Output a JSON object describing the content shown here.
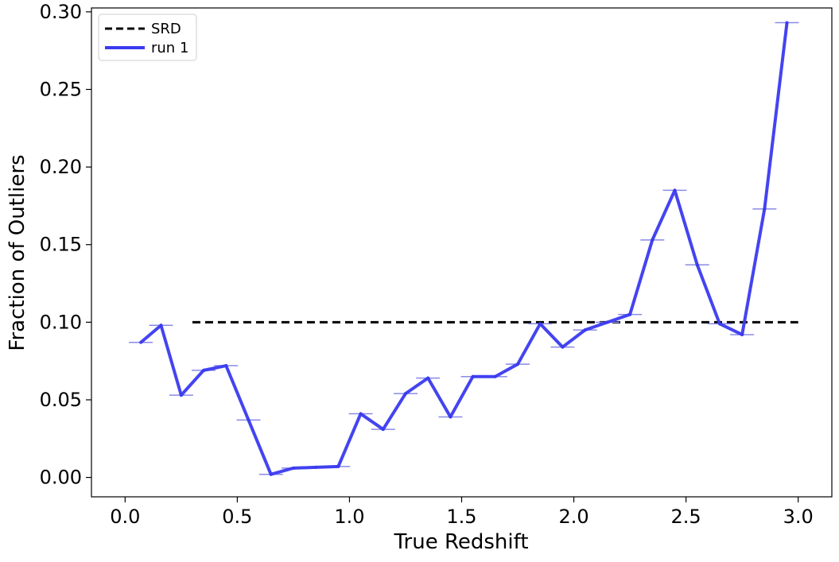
{
  "chart_data": {
    "type": "line",
    "xlabel": "True Redshift",
    "ylabel": "Fraction of Outliers",
    "xlim": [
      -0.15,
      3.15
    ],
    "ylim": [
      -0.0125,
      0.3025
    ],
    "xticks": [
      0.0,
      0.5,
      1.0,
      1.5,
      2.0,
      2.5,
      3.0
    ],
    "xtick_labels": [
      "0.0",
      "0.5",
      "1.0",
      "1.5",
      "2.0",
      "2.5",
      "3.0"
    ],
    "yticks": [
      0.0,
      0.05,
      0.1,
      0.15,
      0.2,
      0.25,
      0.3
    ],
    "ytick_labels": [
      "0.00",
      "0.05",
      "0.10",
      "0.15",
      "0.20",
      "0.25",
      "0.30"
    ],
    "grid": false,
    "legend_position": "top-left",
    "series": [
      {
        "name": "SRD",
        "style": "dashed",
        "color": "#000000",
        "x": [
          0.3,
          3.0
        ],
        "y": [
          0.1,
          0.1
        ]
      },
      {
        "name": "run 1",
        "style": "solid",
        "color": "#3a3af0",
        "errorbar_color": "#8a8ae8",
        "x": [
          0.07,
          0.16,
          0.25,
          0.35,
          0.45,
          0.55,
          0.65,
          0.75,
          0.85,
          0.95,
          1.05,
          1.15,
          1.25,
          1.35,
          1.45,
          1.55,
          1.65,
          1.75,
          1.85,
          1.95,
          2.05,
          2.15,
          2.25,
          2.35,
          2.45,
          2.55,
          2.65,
          2.75,
          2.85,
          2.95
        ],
        "y": [
          0.087,
          0.098,
          0.053,
          0.069,
          0.072,
          0.037,
          0.002,
          0.006,
          0.0065,
          0.007,
          0.041,
          0.031,
          0.054,
          0.064,
          0.039,
          0.065,
          0.065,
          0.073,
          0.099,
          0.084,
          0.095,
          0.1,
          0.105,
          0.153,
          0.185,
          0.137,
          0.099,
          0.092,
          0.173,
          0.293
        ]
      }
    ]
  }
}
